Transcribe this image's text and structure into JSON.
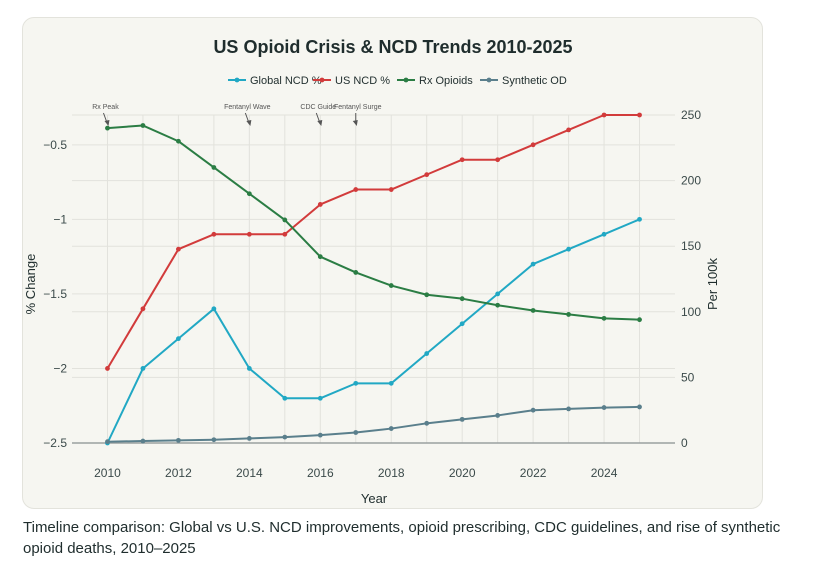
{
  "caption": "Timeline comparison: Global vs U.S. NCD improvements, opioid prescribing, CDC guidelines, and rise of synthetic opioid deaths, 2010–2025",
  "chart_data": {
    "type": "line",
    "title": "US Opioid Crisis & NCD Trends 2010-2025",
    "xlabel": "Year",
    "ylabel": "% Change",
    "y2label": "Per 100k",
    "x": [
      2010,
      2011,
      2012,
      2013,
      2014,
      2015,
      2016,
      2017,
      2018,
      2019,
      2020,
      2021,
      2022,
      2023,
      2024,
      2025
    ],
    "xticks": [
      2010,
      2012,
      2014,
      2016,
      2018,
      2020,
      2022,
      2024
    ],
    "xlim": [
      2009,
      2026
    ],
    "ylim": [
      -2.5,
      -0.3
    ],
    "yticks": [
      -2.5,
      -2,
      -1.5,
      -1,
      -0.5
    ],
    "ytick_labels": [
      "−2.5",
      "−2",
      "−1.5",
      "−1",
      "−0.5"
    ],
    "y2lim": [
      0,
      250
    ],
    "y2ticks": [
      0,
      50,
      100,
      150,
      200,
      250
    ],
    "grid": true,
    "legend_position": "top",
    "series": [
      {
        "name": "Global NCD %",
        "axis": "left",
        "color": "#21a8c4",
        "values": [
          -2.5,
          -2.0,
          -1.8,
          -1.6,
          -2.0,
          -2.2,
          -2.2,
          -2.1,
          -2.1,
          -1.9,
          -1.7,
          -1.5,
          -1.3,
          -1.2,
          -1.1,
          -1.0
        ]
      },
      {
        "name": "US NCD %",
        "axis": "left",
        "color": "#d23b3b",
        "values": [
          -2.0,
          -1.6,
          -1.2,
          -1.1,
          -1.1,
          -1.1,
          -0.9,
          -0.8,
          -0.8,
          -0.7,
          -0.6,
          -0.6,
          -0.5,
          -0.4,
          -0.3,
          -0.3
        ]
      },
      {
        "name": "Rx Opioids",
        "axis": "right",
        "color": "#2b7d44",
        "values": [
          240,
          242,
          230,
          210,
          190,
          170,
          142,
          130,
          120,
          113,
          110,
          105,
          101,
          98,
          95,
          94
        ]
      },
      {
        "name": "Synthetic OD",
        "axis": "right",
        "color": "#5a7f8c",
        "values": [
          1,
          1.5,
          2,
          2.5,
          3.5,
          4.5,
          6,
          8,
          11,
          15,
          18,
          21,
          25,
          26,
          27,
          27.5
        ]
      }
    ],
    "annotations": [
      {
        "text": "Rx Peak",
        "x": 2010
      },
      {
        "text": "Fentanyl Wave",
        "x": 2014
      },
      {
        "text": "CDC Guide",
        "x": 2016
      },
      {
        "text": "Fentanyl Surge",
        "x": 2017
      }
    ]
  }
}
